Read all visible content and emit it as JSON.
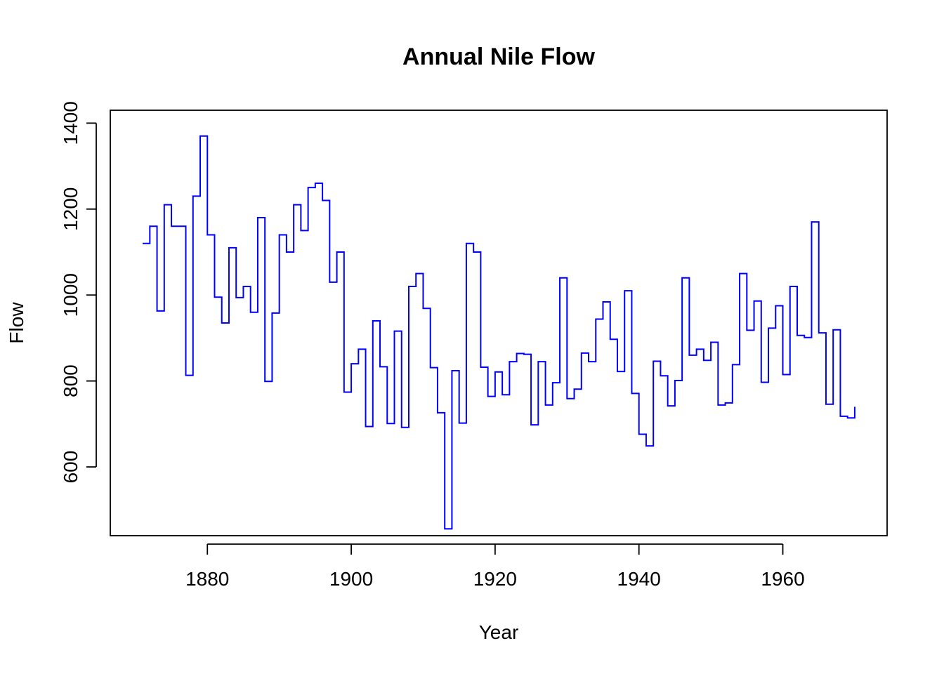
{
  "chart_data": {
    "type": "line",
    "step": true,
    "title": "Annual Nile Flow",
    "xlabel": "Year",
    "ylabel": "Flow",
    "xlim": [
      1866.5,
      1974.5
    ],
    "ylim": [
      440,
      1430
    ],
    "xticks": [
      1880,
      1900,
      1920,
      1940,
      1960
    ],
    "yticks": [
      600,
      800,
      1000,
      1200,
      1400
    ],
    "grid": false,
    "legend": "none",
    "series_color": "#0000FF",
    "series": [
      {
        "x": [
          1871,
          1872,
          1873,
          1874,
          1875,
          1876,
          1877,
          1878,
          1879,
          1880,
          1881,
          1882,
          1883,
          1884,
          1885,
          1886,
          1887,
          1888,
          1889,
          1890,
          1891,
          1892,
          1893,
          1894,
          1895,
          1896,
          1897,
          1898,
          1899,
          1900,
          1901,
          1902,
          1903,
          1904,
          1905,
          1906,
          1907,
          1908,
          1909,
          1910,
          1911,
          1912,
          1913,
          1914,
          1915,
          1916,
          1917,
          1918,
          1919,
          1920,
          1921,
          1922,
          1923,
          1924,
          1925,
          1926,
          1927,
          1928,
          1929,
          1930,
          1931,
          1932,
          1933,
          1934,
          1935,
          1936,
          1937,
          1938,
          1939,
          1940,
          1941,
          1942,
          1943,
          1944,
          1945,
          1946,
          1947,
          1948,
          1949,
          1950,
          1951,
          1952,
          1953,
          1954,
          1955,
          1956,
          1957,
          1958,
          1959,
          1960,
          1961,
          1962,
          1963,
          1964,
          1965,
          1966,
          1967,
          1968,
          1969,
          1970
        ],
        "values": [
          1120,
          1160,
          963,
          1210,
          1160,
          1160,
          813,
          1230,
          1370,
          1140,
          995,
          935,
          1110,
          994,
          1020,
          960,
          1180,
          799,
          958,
          1140,
          1100,
          1210,
          1150,
          1250,
          1260,
          1220,
          1030,
          1100,
          774,
          840,
          874,
          694,
          940,
          833,
          701,
          916,
          692,
          1020,
          1050,
          969,
          831,
          726,
          456,
          824,
          702,
          1120,
          1100,
          832,
          764,
          821,
          768,
          845,
          864,
          862,
          698,
          845,
          744,
          796,
          1040,
          759,
          781,
          865,
          845,
          944,
          984,
          897,
          822,
          1010,
          771,
          676,
          649,
          846,
          812,
          742,
          801,
          1040,
          860,
          874,
          848,
          890,
          744,
          749,
          838,
          1050,
          918,
          986,
          797,
          923,
          975,
          815,
          1020,
          906,
          901,
          1170,
          912,
          746,
          919,
          718,
          714,
          740
        ]
      }
    ]
  }
}
